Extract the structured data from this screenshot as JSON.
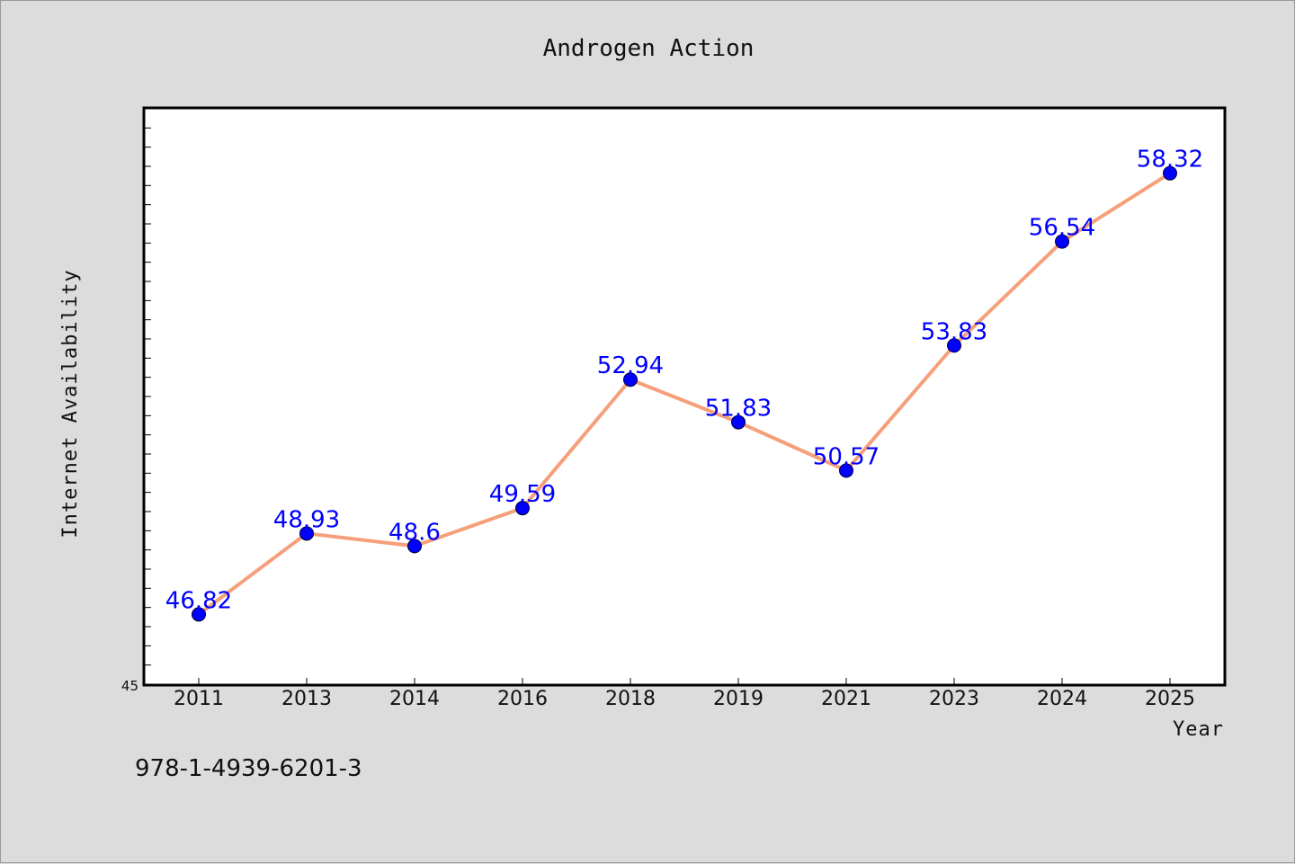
{
  "chart_data": {
    "type": "line",
    "title": "Androgen Action",
    "xlabel": "Year",
    "ylabel": "Internet Availability",
    "categories": [
      "2011",
      "2013",
      "2014",
      "2016",
      "2018",
      "2019",
      "2021",
      "2023",
      "2024",
      "2025"
    ],
    "series": [
      {
        "values": [
          46.82,
          48.93,
          48.6,
          49.59,
          52.94,
          51.83,
          50.57,
          53.83,
          56.54,
          58.32
        ],
        "labels": [
          "46.82",
          "48.93",
          "48.6",
          "49.59",
          "52.94",
          "51.83",
          "50.57",
          "53.83",
          "56.54",
          "58.32"
        ],
        "line_color": "#f5a07a",
        "marker_color": "#0000ff"
      }
    ],
    "ylim": [
      45,
      60
    ],
    "y_min_label": "45",
    "grid": false
  },
  "footer": {
    "isbn": "978-1-4939-6201-3"
  }
}
